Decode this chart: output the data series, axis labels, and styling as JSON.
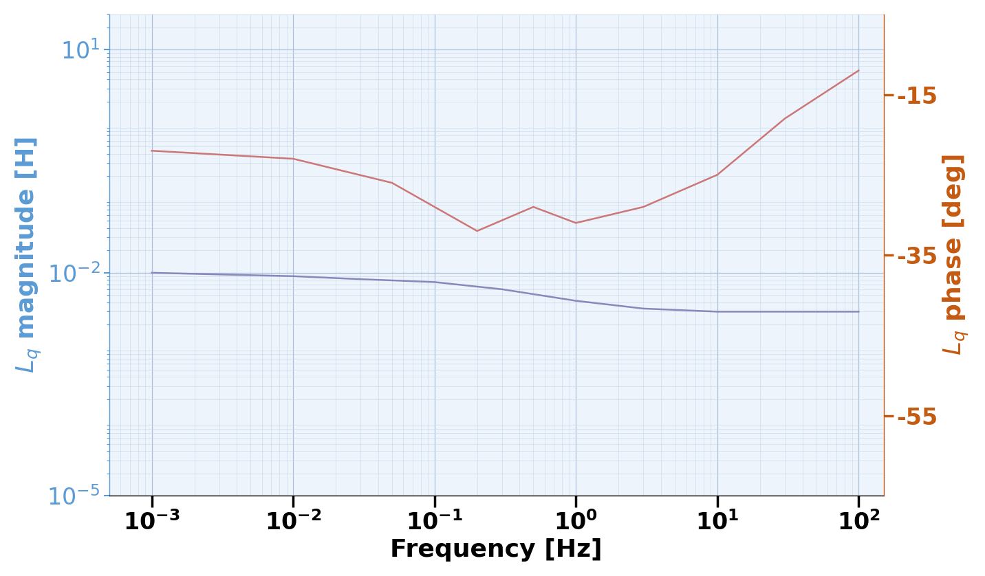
{
  "freq_mag": [
    0.001,
    0.003,
    0.01,
    0.03,
    0.1,
    0.3,
    1.0,
    3.0,
    10.0,
    30.0,
    100.0
  ],
  "mag_vals": [
    0.01,
    0.0095,
    0.009,
    0.0082,
    0.0075,
    0.006,
    0.0042,
    0.0033,
    0.003,
    0.003,
    0.003
  ],
  "freq_phase": [
    0.001,
    0.01,
    0.05,
    0.1,
    0.2,
    0.5,
    1.0,
    3.0,
    10.0,
    30.0,
    100.0
  ],
  "phase_vals": [
    -22,
    -23,
    -26,
    -29,
    -32,
    -29,
    -31,
    -29,
    -25,
    -18,
    -12
  ],
  "xlim": [
    0.0005,
    150.0
  ],
  "mag_ylim": [
    1e-05,
    30
  ],
  "phase_ylim": [
    -65,
    -5
  ],
  "phase_yticks": [
    -55,
    -35,
    -15
  ],
  "mag_yticks": [
    1e-05,
    0.01,
    10.0
  ],
  "xticks": [
    0.001,
    0.1,
    10.0
  ],
  "xlabel": "Frequency [Hz]",
  "ylabel_left": "$L_q$ magnitude [H]",
  "ylabel_right": "$L_q$ phase [deg]",
  "left_color": "#5B9BD5",
  "right_color": "#C55A11",
  "line_color_mag": "#8888BB",
  "line_color_phase": "#CC7777",
  "bg_color": "#EEF4FB",
  "grid_major_color": "#AABEDD",
  "grid_minor_color": "#C8D9EC",
  "label_fontsize": 26,
  "tick_fontsize": 24,
  "line_width": 1.8
}
